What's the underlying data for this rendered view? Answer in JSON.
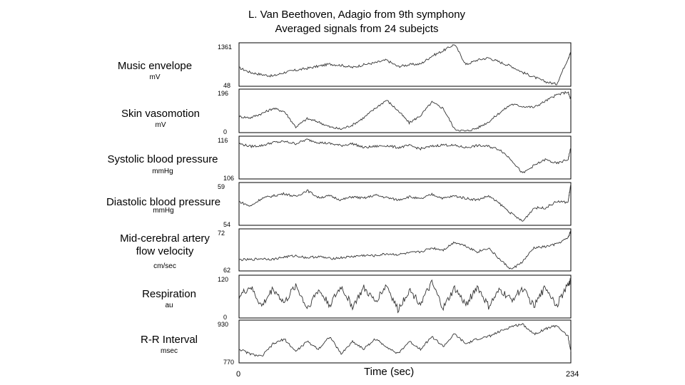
{
  "chart_data": {
    "type": "line",
    "title": "L. Van Beethoven, Adagio from 9th symphony",
    "subtitle": "Averaged signals from 24 subejcts",
    "xlabel": "Time (sec)",
    "xlim": [
      0,
      234
    ],
    "x_ticks": [
      "0",
      "234"
    ],
    "grid": false,
    "series": [
      {
        "name": "Music envelope",
        "unit": "mV",
        "ylim": [
          48,
          1361
        ],
        "ytick_max": "1361",
        "ytick_min": "48",
        "x": [
          0,
          8,
          16,
          24,
          32,
          40,
          48,
          56,
          64,
          72,
          80,
          88,
          96,
          104,
          112,
          120,
          128,
          136,
          144,
          152,
          160,
          168,
          176,
          184,
          192,
          200,
          208,
          216,
          224,
          232,
          234
        ],
        "values": [
          600,
          450,
          380,
          330,
          450,
          520,
          580,
          650,
          720,
          680,
          610,
          700,
          760,
          850,
          640,
          700,
          720,
          980,
          1150,
          1361,
          700,
          850,
          920,
          780,
          650,
          450,
          300,
          150,
          70,
          900,
          1100
        ]
      },
      {
        "name": "Skin vasomotion",
        "unit": "mV",
        "ylim": [
          0,
          196
        ],
        "ytick_max": "196",
        "ytick_min": "0",
        "x": [
          0,
          8,
          16,
          24,
          32,
          40,
          48,
          56,
          64,
          72,
          80,
          88,
          96,
          104,
          112,
          120,
          128,
          136,
          144,
          152,
          160,
          168,
          176,
          184,
          192,
          200,
          208,
          216,
          224,
          232,
          234
        ],
        "values": [
          70,
          65,
          85,
          110,
          95,
          20,
          60,
          45,
          20,
          10,
          30,
          65,
          110,
          150,
          100,
          40,
          75,
          140,
          110,
          10,
          0,
          15,
          45,
          90,
          130,
          120,
          115,
          145,
          175,
          190,
          150
        ]
      },
      {
        "name": "Systolic blood pressure",
        "unit": "mmHg",
        "ylim": [
          106,
          116
        ],
        "ytick_max": "116",
        "ytick_min": "106",
        "x": [
          0,
          8,
          16,
          24,
          32,
          40,
          48,
          56,
          64,
          72,
          80,
          88,
          96,
          104,
          112,
          120,
          128,
          136,
          144,
          152,
          160,
          168,
          176,
          184,
          192,
          200,
          208,
          216,
          224,
          232,
          234
        ],
        "values": [
          114.5,
          113.8,
          114.0,
          114.8,
          115.0,
          114.5,
          115.5,
          114.8,
          114.5,
          114.0,
          114.5,
          113.5,
          113.8,
          114.0,
          113.5,
          114.0,
          113.2,
          113.8,
          114.2,
          114.0,
          113.5,
          114.0,
          113.8,
          113.0,
          110.5,
          107.0,
          109.0,
          110.5,
          109.5,
          110.5,
          113.5
        ]
      },
      {
        "name": "Diastolic blood pressure",
        "unit": "mmHg",
        "ylim": [
          54,
          59
        ],
        "ytick_max": "59",
        "ytick_min": "54",
        "x": [
          0,
          8,
          16,
          24,
          32,
          40,
          48,
          56,
          64,
          72,
          80,
          88,
          96,
          104,
          112,
          120,
          128,
          136,
          144,
          152,
          160,
          168,
          176,
          184,
          192,
          200,
          208,
          216,
          224,
          232,
          234
        ],
        "values": [
          56.8,
          56.2,
          57.2,
          57.5,
          57.8,
          57.4,
          58.2,
          57.3,
          57.5,
          57.0,
          57.4,
          57.2,
          57.6,
          57.3,
          57.0,
          57.4,
          57.1,
          57.7,
          57.2,
          57.5,
          57.2,
          57.0,
          57.5,
          56.5,
          55.3,
          54.3,
          56.0,
          56.0,
          56.8,
          56.7,
          59.0
        ]
      },
      {
        "name": "Mid-cerebral artery flow velocity",
        "unit": "cm/sec",
        "ylim": [
          62,
          72
        ],
        "ytick_max": "72",
        "ytick_min": "62",
        "x": [
          0,
          8,
          16,
          24,
          32,
          40,
          48,
          56,
          64,
          72,
          80,
          88,
          96,
          104,
          112,
          120,
          128,
          136,
          144,
          152,
          160,
          168,
          176,
          184,
          192,
          200,
          208,
          216,
          224,
          232,
          234
        ],
        "values": [
          64.5,
          64.5,
          64.8,
          64.6,
          65.2,
          65.5,
          65.0,
          65.3,
          64.8,
          65.0,
          65.3,
          65.6,
          65.5,
          66.0,
          65.8,
          66.2,
          66.5,
          67.5,
          67.0,
          69.0,
          68.0,
          66.5,
          67.5,
          64.5,
          62.0,
          64.0,
          67.5,
          67.8,
          68.5,
          70.0,
          72.0
        ]
      },
      {
        "name": "Respiration",
        "unit": "au",
        "ylim": [
          0,
          120
        ],
        "ytick_max": "120",
        "ytick_min": "0",
        "x": [
          0,
          8,
          16,
          24,
          32,
          40,
          48,
          56,
          64,
          72,
          80,
          88,
          96,
          104,
          112,
          120,
          128,
          136,
          144,
          152,
          160,
          168,
          176,
          184,
          192,
          200,
          208,
          216,
          224,
          232,
          234
        ],
        "values": [
          60,
          90,
          30,
          85,
          40,
          95,
          25,
          80,
          35,
          90,
          30,
          85,
          45,
          95,
          20,
          80,
          40,
          100,
          25,
          85,
          35,
          90,
          30,
          80,
          50,
          85,
          30,
          90,
          35,
          95,
          110
        ]
      },
      {
        "name": "R-R Interval",
        "unit": "msec",
        "ylim": [
          770,
          930
        ],
        "ytick_max": "930",
        "ytick_min": "770",
        "x": [
          0,
          8,
          16,
          24,
          32,
          40,
          48,
          56,
          64,
          72,
          80,
          88,
          96,
          104,
          112,
          120,
          128,
          136,
          144,
          152,
          160,
          168,
          176,
          184,
          192,
          200,
          208,
          216,
          224,
          232,
          234
        ],
        "values": [
          820,
          800,
          790,
          840,
          860,
          810,
          850,
          820,
          870,
          800,
          850,
          820,
          860,
          830,
          800,
          850,
          820,
          870,
          830,
          880,
          840,
          860,
          870,
          890,
          910,
          920,
          880,
          900,
          915,
          870,
          810
        ]
      }
    ]
  }
}
